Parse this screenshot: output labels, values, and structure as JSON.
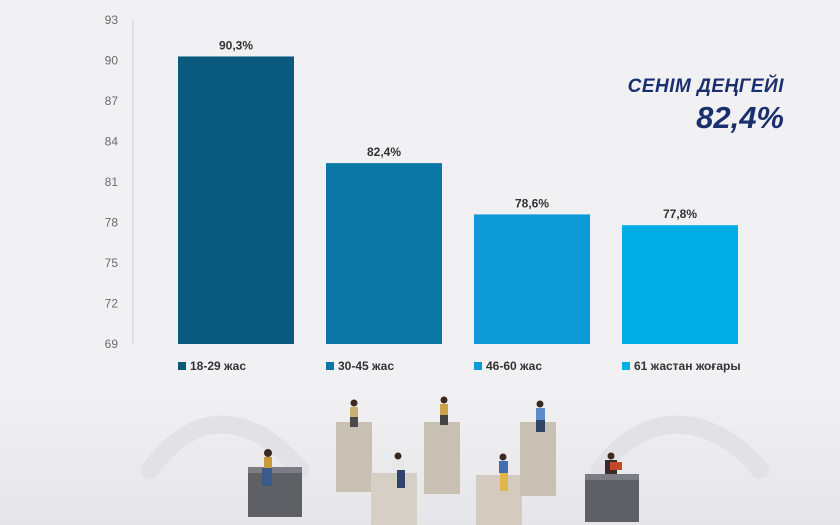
{
  "chart_data": {
    "type": "bar",
    "categories": [
      "18-29 жас",
      "30-45 жас",
      "46-60 жас",
      "61 жастан жоғары"
    ],
    "values": [
      90.3,
      82.4,
      78.6,
      77.8
    ],
    "data_labels": [
      "90,3%",
      "82,4%",
      "78,6%",
      "77,8%"
    ],
    "ylim": [
      69,
      93
    ],
    "y_ticks": [
      "69",
      "72",
      "75",
      "78",
      "81",
      "84",
      "87",
      "90",
      "93"
    ],
    "y_tick_values": [
      69,
      72,
      75,
      78,
      81,
      84,
      87,
      90,
      93
    ],
    "colors": [
      "#0a5a80",
      "#0b77a6",
      "#0e9ad6",
      "#00aee6"
    ],
    "legend_position": "bottom",
    "grid": false
  },
  "headline": {
    "label": "СЕНІМ ДЕҢГЕЙІ",
    "value": "82,4%"
  }
}
